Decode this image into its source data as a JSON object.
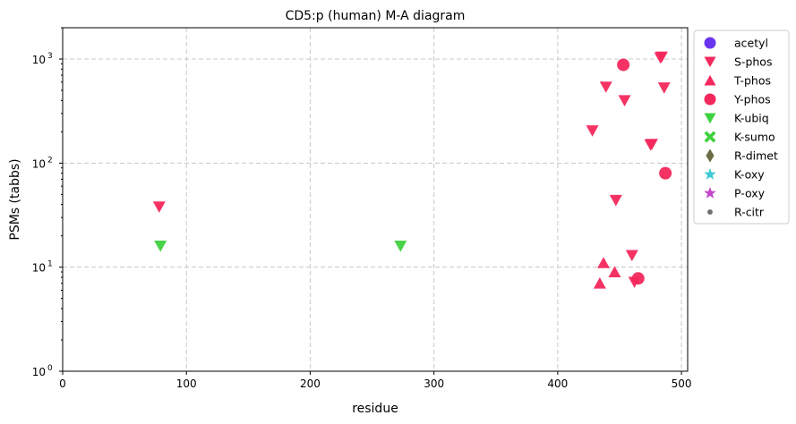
{
  "chart_data": {
    "type": "scatter",
    "title": "CD5:p (human) M-A diagram",
    "xlabel": "residue",
    "ylabel": "PSMs (tabbs)",
    "xlim": [
      0,
      505
    ],
    "ylim": [
      1,
      2000
    ],
    "yscale": "log",
    "x_ticks": [
      0,
      100,
      200,
      300,
      400,
      500
    ],
    "x_tick_labels": [
      "0",
      "100",
      "200",
      "300",
      "400",
      "500"
    ],
    "y_ticks": [
      1,
      10,
      100,
      1000
    ],
    "y_tick_labels": [
      "10",
      "10",
      "10",
      "10"
    ],
    "y_tick_exponents": [
      "0",
      "1",
      "2",
      "3"
    ],
    "grid": true,
    "legend_position": "outside-right",
    "series": [
      {
        "name": "acetyl",
        "marker": "circle",
        "color": "#6a35f0",
        "points": []
      },
      {
        "name": "S-phos",
        "marker": "triangle-down",
        "color": "#f3285c",
        "points": [
          {
            "x": 78,
            "y": 38
          },
          {
            "x": 428,
            "y": 205
          },
          {
            "x": 439,
            "y": 540
          },
          {
            "x": 447,
            "y": 44
          },
          {
            "x": 454,
            "y": 400
          },
          {
            "x": 460,
            "y": 13
          },
          {
            "x": 462,
            "y": 7.2
          },
          {
            "x": 475,
            "y": 150
          },
          {
            "x": 476,
            "y": 152
          },
          {
            "x": 483,
            "y": 1030
          },
          {
            "x": 484,
            "y": 1050
          },
          {
            "x": 486,
            "y": 530
          }
        ]
      },
      {
        "name": "T-phos",
        "marker": "triangle-up",
        "color": "#f3285c",
        "points": [
          {
            "x": 434,
            "y": 7
          },
          {
            "x": 437,
            "y": 11
          },
          {
            "x": 446,
            "y": 9
          }
        ]
      },
      {
        "name": "Y-phos",
        "marker": "circle",
        "color": "#f3285c",
        "points": [
          {
            "x": 453,
            "y": 880
          },
          {
            "x": 465,
            "y": 7.8
          },
          {
            "x": 487,
            "y": 80
          }
        ]
      },
      {
        "name": "K-ubiq",
        "marker": "triangle-down",
        "color": "#3ed13e",
        "points": [
          {
            "x": 79,
            "y": 16
          },
          {
            "x": 273,
            "y": 16
          }
        ]
      },
      {
        "name": "K-sumo",
        "marker": "x",
        "color": "#3ed13e",
        "points": []
      },
      {
        "name": "R-dimet",
        "marker": "diamond",
        "color": "#6b6b45",
        "points": []
      },
      {
        "name": "K-oxy",
        "marker": "star",
        "color": "#3ecbd3",
        "points": []
      },
      {
        "name": "P-oxy",
        "marker": "star",
        "color": "#c247c9",
        "points": []
      },
      {
        "name": "R-citr",
        "marker": "dot",
        "color": "#6e6e6e",
        "points": []
      }
    ]
  }
}
